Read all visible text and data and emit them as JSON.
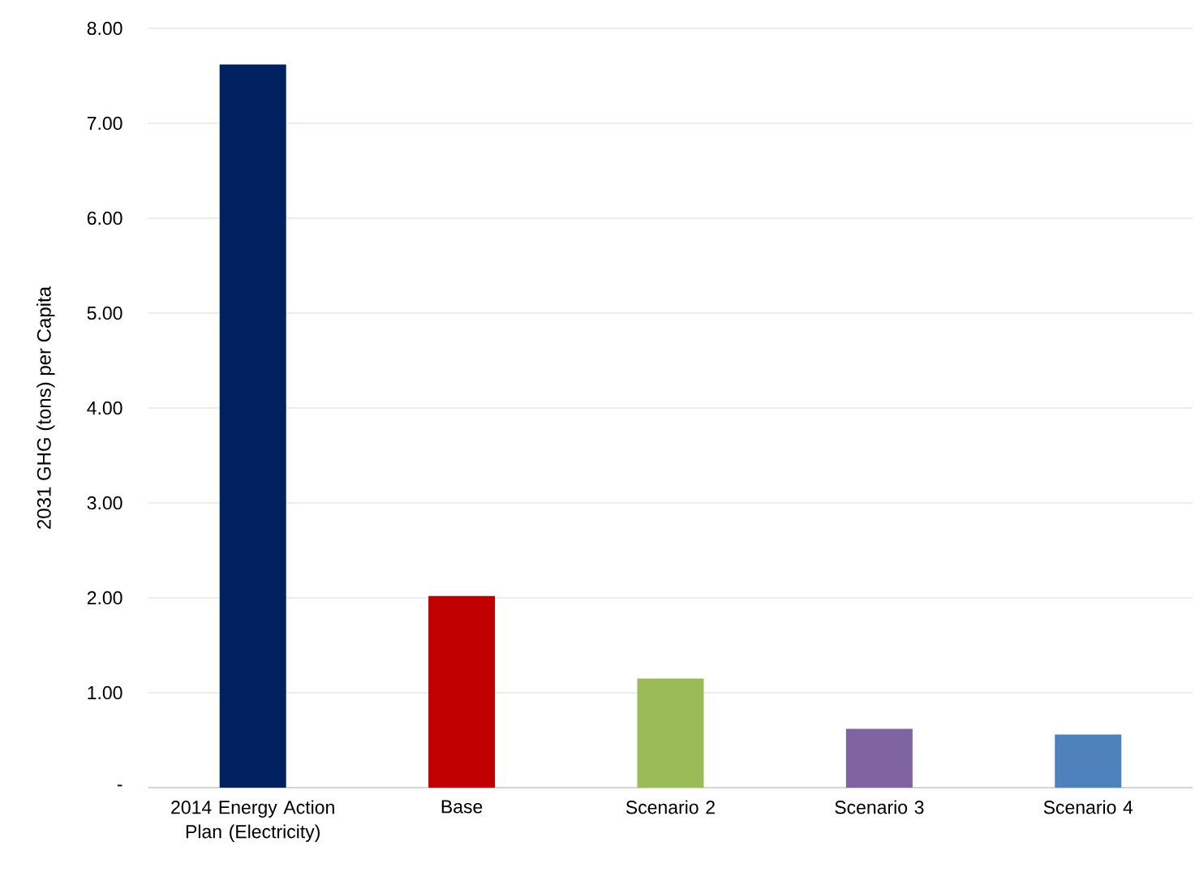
{
  "chart_data": {
    "type": "bar",
    "ylabel": "2031 GHG (tons) per Capita",
    "categories": [
      "2014 Energy Action Plan (Electricity)",
      "Base",
      "Scenario 2",
      "Scenario 3",
      "Scenario 4"
    ],
    "values": [
      7.62,
      2.02,
      1.15,
      0.62,
      0.56
    ],
    "colors": [
      "#002060",
      "#c00000",
      "#9bbb59",
      "#8064a2",
      "#4f81bd"
    ],
    "ylim": [
      0,
      8
    ],
    "yticks": [
      {
        "value": 0,
        "label": "-"
      },
      {
        "value": 1,
        "label": "1.00"
      },
      {
        "value": 2,
        "label": "2.00"
      },
      {
        "value": 3,
        "label": "3.00"
      },
      {
        "value": 4,
        "label": "4.00"
      },
      {
        "value": 5,
        "label": "5.00"
      },
      {
        "value": 6,
        "label": "6.00"
      },
      {
        "value": 7,
        "label": "7.00"
      },
      {
        "value": 8,
        "label": "8.00"
      }
    ],
    "grid": "y"
  }
}
